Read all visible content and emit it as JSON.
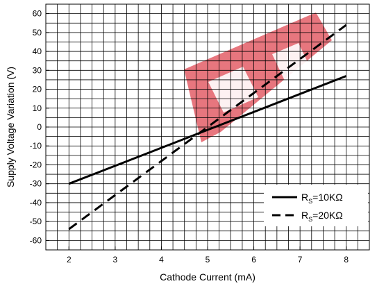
{
  "chart_data": {
    "type": "line",
    "title": "",
    "xlabel": "Cathode Current (mA)",
    "ylabel": "Supply Voltage Variation (V)",
    "xlim": [
      1.5,
      8.5
    ],
    "ylim": [
      -65,
      65
    ],
    "xticks": [
      2,
      3,
      4,
      5,
      6,
      7,
      8
    ],
    "xtick_labels": [
      "2",
      "3",
      "4",
      "5",
      "6",
      "7",
      "8"
    ],
    "yticks": [
      -60,
      -50,
      -40,
      -30,
      -20,
      -10,
      0,
      10,
      20,
      30,
      40,
      50,
      60
    ],
    "ytick_labels": [
      "-60",
      "-50",
      "-40",
      "-30",
      "-20",
      "-10",
      "0",
      "10",
      "20",
      "30",
      "40",
      "50",
      "60"
    ],
    "grid": true,
    "legend_position": "bottom-right",
    "series": [
      {
        "name_main": "R",
        "name_sub": "S",
        "name_rest": "=10KΩ",
        "style": "solid",
        "color": "#000000",
        "x": [
          2,
          8
        ],
        "y": [
          -30,
          27
        ]
      },
      {
        "name_main": "R",
        "name_sub": "S",
        "name_rest": "=20KΩ",
        "style": "dashed",
        "color": "#000000",
        "x": [
          2,
          8
        ],
        "y": [
          -54,
          54
        ]
      }
    ],
    "watermark_color": "#e0505a"
  }
}
